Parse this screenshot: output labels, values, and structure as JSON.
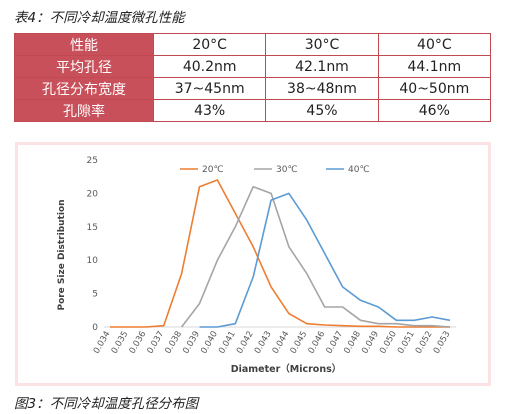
{
  "table_caption": "表4：不同冷却温度微孔性能",
  "figure_caption": "图3：不同冷却温度孔径分布图",
  "table": {
    "rows": [
      {
        "label": "性能",
        "values": [
          "20°C",
          "30°C",
          "40°C"
        ]
      },
      {
        "label": "平均孔径",
        "values": [
          "40.2nm",
          "42.1nm",
          "44.1nm"
        ]
      },
      {
        "label": "孔径分布宽度",
        "values": [
          "37~45nm",
          "38~48nm",
          "40~50nm"
        ]
      },
      {
        "label": "孔隙率",
        "values": [
          "43%",
          "45%",
          "46%"
        ]
      }
    ]
  },
  "chart_data": {
    "type": "line",
    "title": "",
    "xlabel": "Diameter（Microns）",
    "ylabel": "Pore Size Distribution",
    "ylim": [
      0,
      25
    ],
    "yticks": [
      "0",
      "5",
      "10",
      "15",
      "20",
      "25"
    ],
    "categories": [
      "0.034",
      "0.035",
      "0.036",
      "0.037",
      "0.038",
      "0.039",
      "0.040",
      "0.041",
      "0.042",
      "0.043",
      "0.044",
      "0.045",
      "0.046",
      "0.047",
      "0.048",
      "0.049",
      "0.050",
      "0.051",
      "0.052",
      "0.053"
    ],
    "legend_position": "top",
    "grid": false,
    "series": [
      {
        "name": "20℃",
        "color": "#ed7d31",
        "values": [
          0,
          0,
          0,
          0.2,
          8,
          21,
          22,
          17,
          12,
          6,
          2,
          0.5,
          0.3,
          0.2,
          0.1,
          0.1,
          0,
          0,
          0,
          0
        ]
      },
      {
        "name": "30℃",
        "color": "#a5a5a5",
        "values": [
          null,
          null,
          null,
          null,
          0,
          3.5,
          10,
          15,
          21,
          20,
          12,
          8,
          3,
          3,
          1,
          0.5,
          0.5,
          0.2,
          0.2,
          0
        ]
      },
      {
        "name": "40℃",
        "color": "#5b9bd5",
        "values": [
          null,
          null,
          null,
          null,
          null,
          0,
          0,
          0.5,
          7.5,
          19,
          20,
          16,
          11,
          6,
          4,
          3,
          1,
          1,
          1.5,
          1
        ]
      }
    ]
  }
}
